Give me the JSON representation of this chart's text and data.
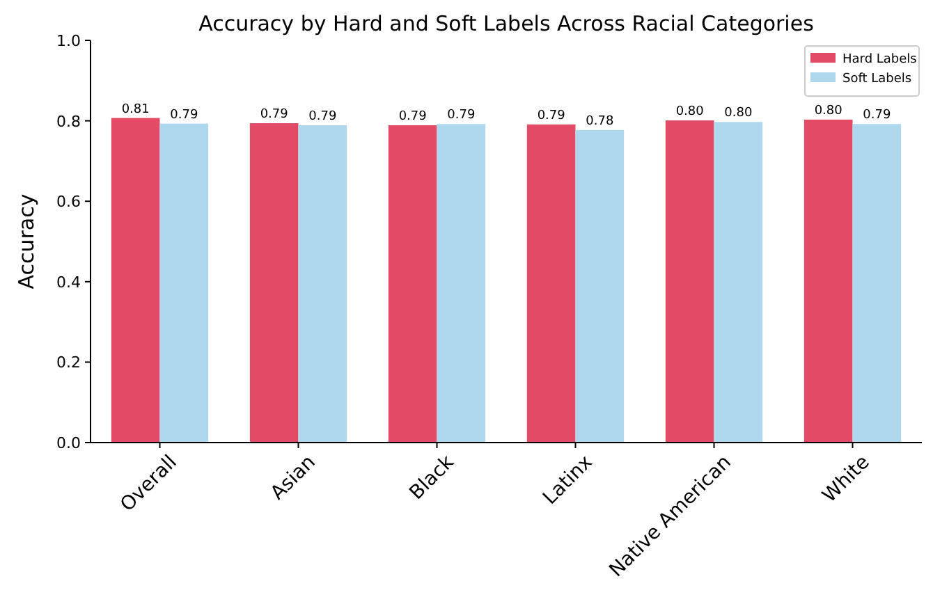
{
  "chart_data": {
    "type": "bar",
    "title": "Accuracy by Hard and Soft Labels Across Racial Categories",
    "ylabel": "Accuracy",
    "categories": [
      "Overall",
      "Asian",
      "Black",
      "Latinx",
      "Native American",
      "White"
    ],
    "series": [
      {
        "name": "Hard Labels",
        "color": "#e34a66",
        "values": [
          0.807,
          0.794,
          0.789,
          0.791,
          0.801,
          0.803
        ],
        "value_labels": [
          "0.81",
          "0.79",
          "0.79",
          "0.79",
          "0.80",
          "0.80"
        ]
      },
      {
        "name": "Soft Labels",
        "color": "#add8ee",
        "values": [
          0.793,
          0.789,
          0.792,
          0.777,
          0.797,
          0.792
        ],
        "value_labels": [
          "0.79",
          "0.79",
          "0.79",
          "0.78",
          "0.80",
          "0.79"
        ]
      }
    ],
    "ylim": [
      0,
      1
    ],
    "yticks": [
      {
        "value": 0,
        "label": "0.0"
      },
      {
        "value": 0.2,
        "label": "0.2"
      },
      {
        "value": 0.4,
        "label": "0.4"
      },
      {
        "value": 0.6,
        "label": "0.6"
      },
      {
        "value": 0.8,
        "label": "0.8"
      },
      {
        "value": 1,
        "label": "1.0"
      }
    ],
    "grid": false,
    "legend": "top right"
  }
}
